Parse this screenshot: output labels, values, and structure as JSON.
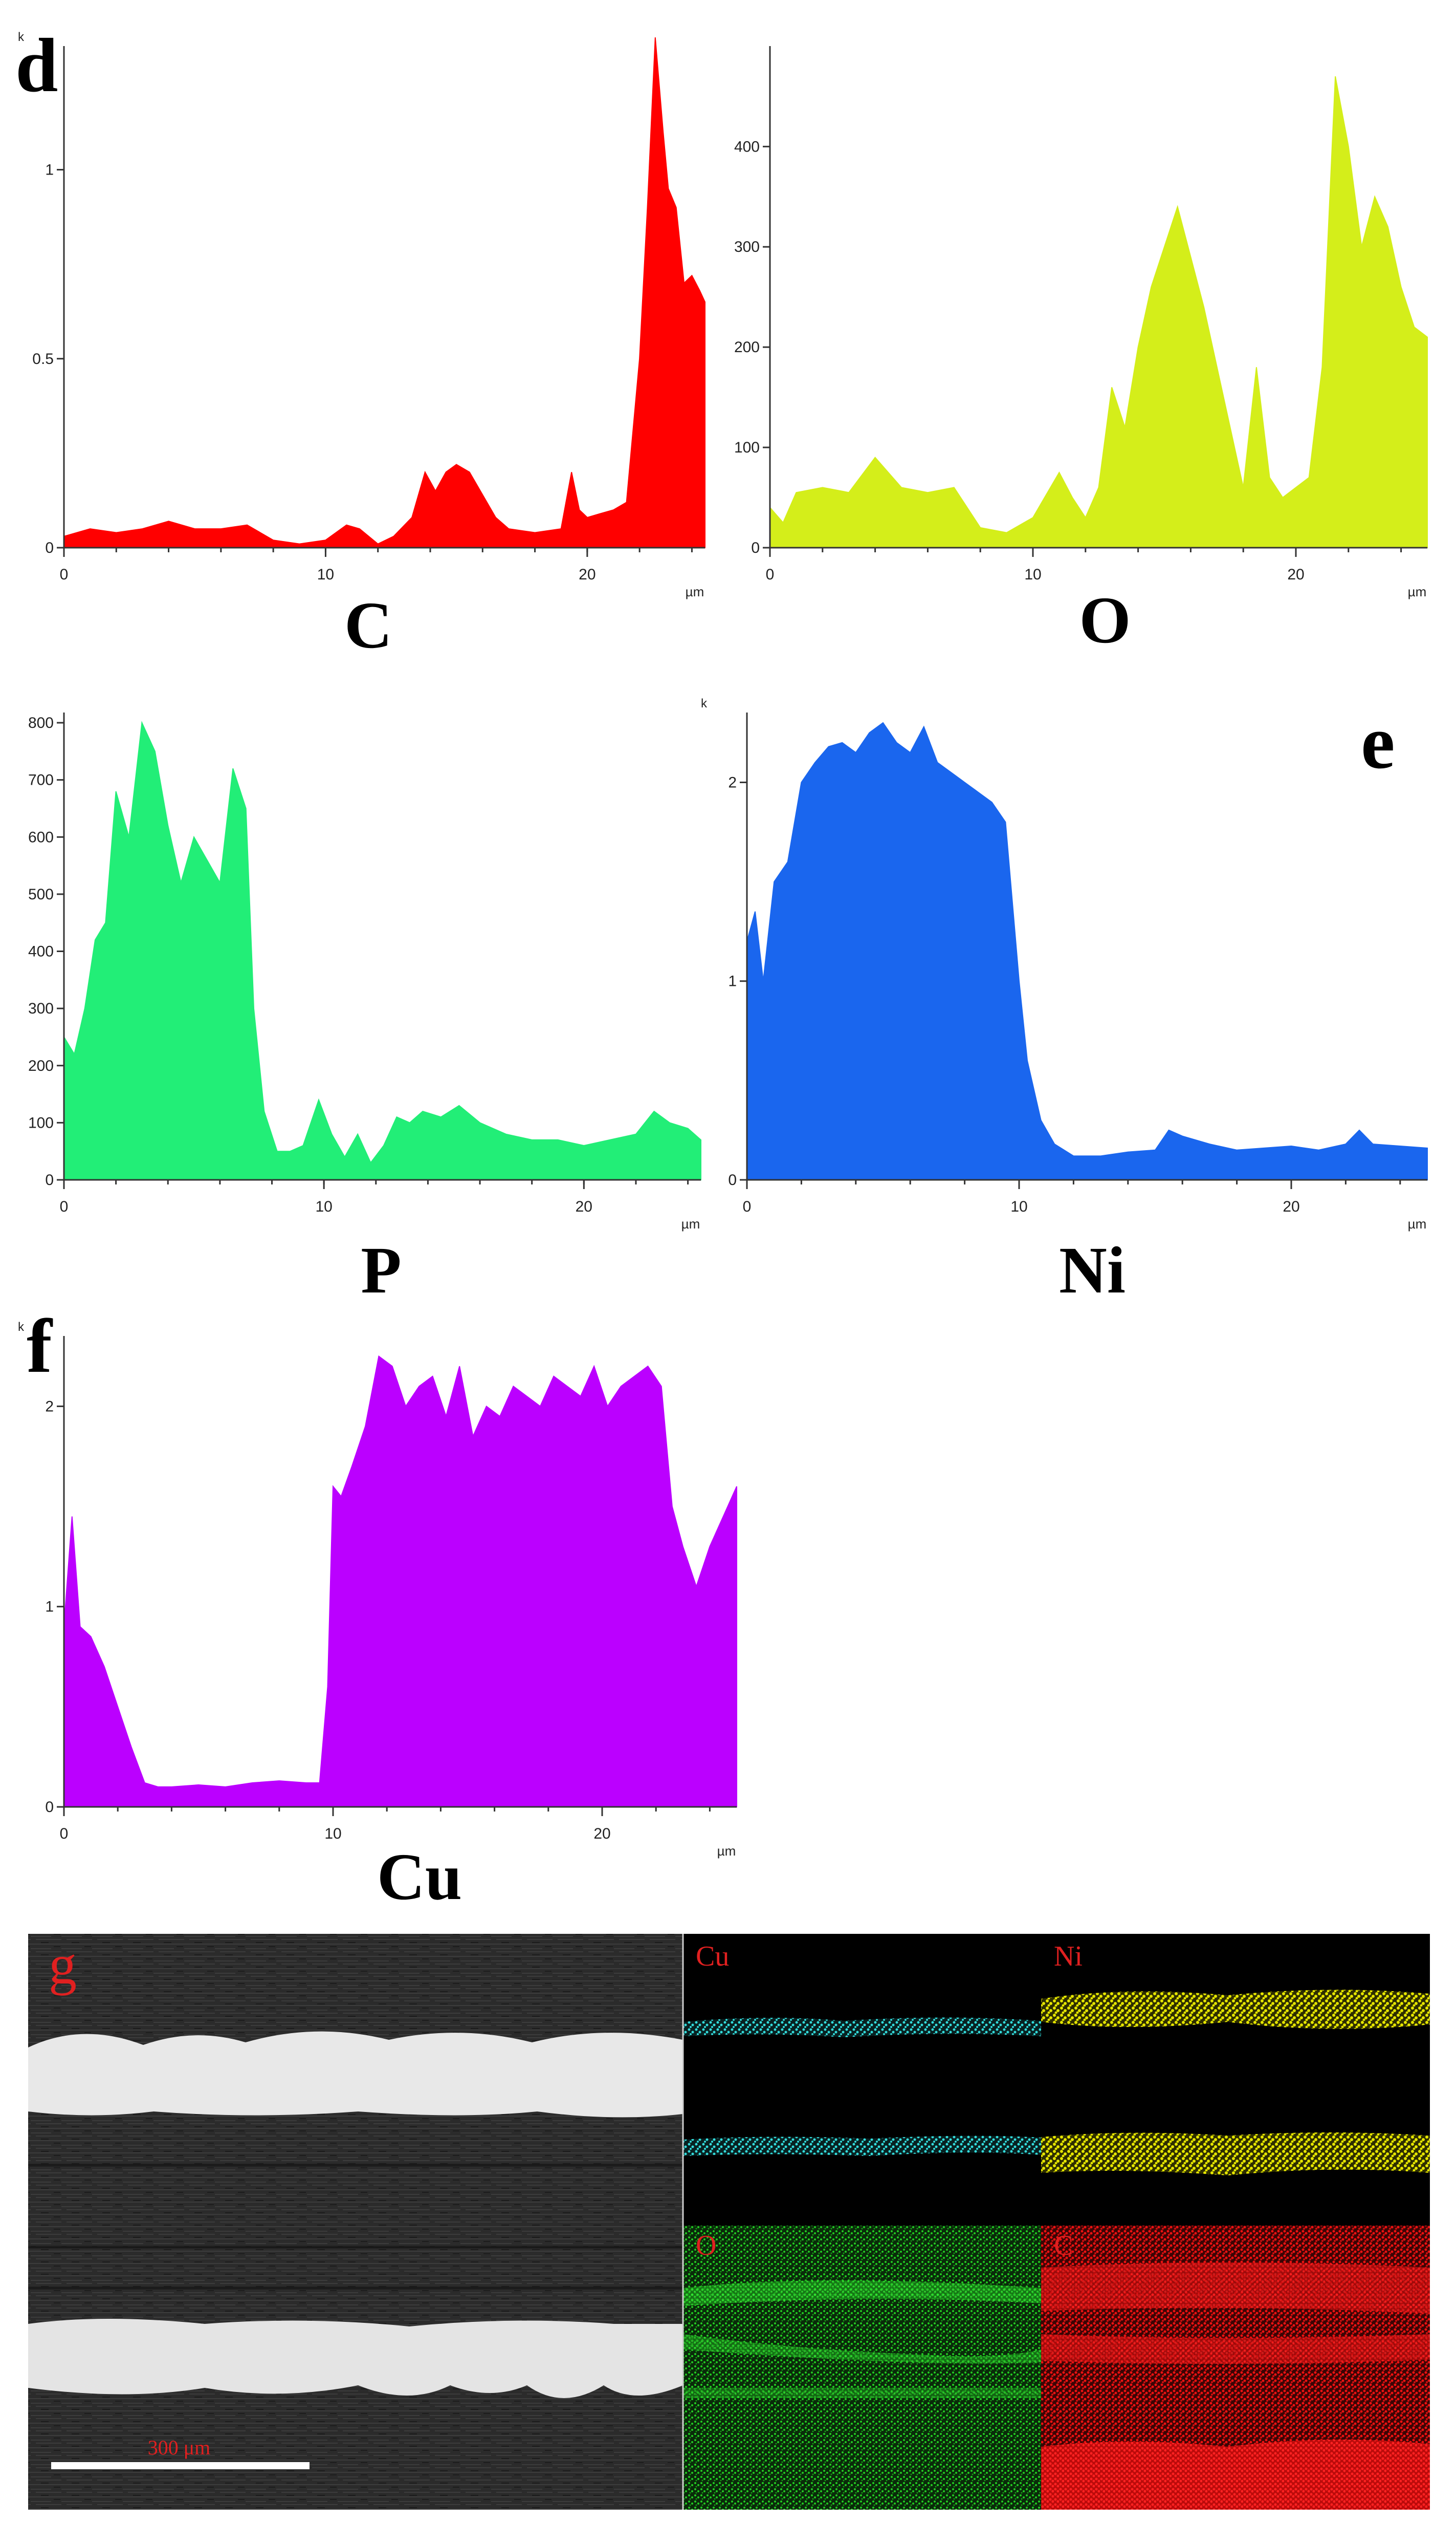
{
  "chart_data": [
    {
      "type": "area",
      "panel": "d",
      "element_label": "C",
      "color": "#ff0000",
      "xlabel": "µm",
      "ylabel_unit": "k",
      "xlim": [
        0,
        24.5
      ],
      "ylim": [
        0,
        1.3
      ],
      "xticks": [
        0,
        10,
        20
      ],
      "yticks": [
        0,
        0.5,
        1
      ],
      "ytick_labels": [
        "0",
        "0.5",
        "1"
      ],
      "x": [
        0,
        0.5,
        1,
        2,
        3,
        4,
        5,
        6,
        7,
        8,
        9,
        10,
        10.8,
        11.3,
        12,
        12.6,
        13.3,
        13.8,
        14.2,
        14.6,
        15,
        15.5,
        16,
        16.5,
        17,
        18,
        19,
        19.4,
        19.7,
        20,
        20.5,
        21,
        21.5,
        22,
        22.3,
        22.6,
        22.9,
        23.1,
        23.4,
        23.7,
        24,
        24.3,
        24.5
      ],
      "values": [
        0.03,
        0.04,
        0.05,
        0.04,
        0.05,
        0.07,
        0.05,
        0.05,
        0.06,
        0.02,
        0.01,
        0.02,
        0.06,
        0.05,
        0.01,
        0.03,
        0.08,
        0.2,
        0.15,
        0.2,
        0.22,
        0.2,
        0.14,
        0.08,
        0.05,
        0.04,
        0.05,
        0.2,
        0.1,
        0.08,
        0.09,
        0.1,
        0.12,
        0.5,
        0.9,
        1.35,
        1.1,
        0.95,
        0.9,
        0.7,
        0.72,
        0.68,
        0.65
      ]
    },
    {
      "type": "area",
      "panel": "d",
      "element_label": "O",
      "color": "#d4ee1a",
      "xlabel": "µm",
      "xlim": [
        0,
        25
      ],
      "ylim": [
        0,
        490
      ],
      "xticks": [
        0,
        10,
        20
      ],
      "yticks": [
        0,
        100,
        200,
        300,
        400
      ],
      "ytick_labels": [
        "0",
        "100",
        "200",
        "300",
        "400"
      ],
      "x": [
        0,
        0.5,
        1,
        2,
        3,
        4,
        5,
        6,
        7,
        8,
        9,
        10,
        11,
        11.5,
        12,
        12.5,
        13,
        13.5,
        14,
        14.5,
        15,
        15.5,
        16,
        16.5,
        17,
        17.5,
        18,
        18.5,
        19,
        19.5,
        20,
        20.5,
        21,
        21.5,
        22,
        22.5,
        23,
        23.5,
        24,
        24.5,
        25
      ],
      "values": [
        40,
        25,
        55,
        60,
        55,
        90,
        60,
        55,
        60,
        20,
        15,
        30,
        75,
        50,
        30,
        60,
        160,
        120,
        200,
        260,
        300,
        340,
        290,
        240,
        180,
        120,
        60,
        180,
        70,
        50,
        60,
        70,
        180,
        470,
        400,
        300,
        350,
        320,
        260,
        220,
        210
      ]
    },
    {
      "type": "area",
      "panel": "e",
      "element_label": "P",
      "color": "#22ee77",
      "xlabel": "µm",
      "xlim": [
        0,
        24.5
      ],
      "ylim": [
        0,
        800
      ],
      "xticks": [
        0,
        10,
        20
      ],
      "yticks": [
        0,
        100,
        200,
        300,
        400,
        500,
        600,
        700,
        800
      ],
      "ytick_labels": [
        "0",
        "100",
        "200",
        "300",
        "400",
        "500",
        "600",
        "700",
        "800"
      ],
      "x": [
        0,
        0.4,
        0.8,
        1.2,
        1.6,
        2,
        2.5,
        3,
        3.5,
        4,
        4.5,
        5,
        5.5,
        6,
        6.5,
        7,
        7.3,
        7.7,
        8.2,
        8.7,
        9.2,
        9.8,
        10.3,
        10.8,
        11.3,
        11.8,
        12.3,
        12.8,
        13.3,
        13.8,
        14.5,
        15.2,
        16,
        17,
        18,
        19,
        20,
        21,
        22,
        22.7,
        23.3,
        24,
        24.5
      ],
      "values": [
        250,
        220,
        300,
        420,
        450,
        680,
        600,
        800,
        750,
        620,
        520,
        600,
        560,
        520,
        720,
        650,
        300,
        120,
        50,
        50,
        60,
        140,
        80,
        40,
        80,
        30,
        60,
        110,
        100,
        120,
        110,
        130,
        100,
        80,
        70,
        70,
        60,
        70,
        80,
        120,
        100,
        90,
        70
      ]
    },
    {
      "type": "area",
      "panel": "e",
      "element_label": "Ni",
      "color": "#1a66ee",
      "xlabel": "µm",
      "ylabel_unit": "k",
      "xlim": [
        0,
        25
      ],
      "ylim": [
        0,
        2.3
      ],
      "xticks": [
        0,
        10,
        20
      ],
      "yticks": [
        0,
        1,
        2
      ],
      "ytick_labels": [
        "0",
        "1",
        "2"
      ],
      "x": [
        0,
        0.3,
        0.6,
        1,
        1.5,
        2,
        2.5,
        3,
        3.5,
        4,
        4.5,
        5,
        5.5,
        6,
        6.5,
        7,
        7.5,
        8,
        8.5,
        9,
        9.5,
        10,
        10.3,
        10.8,
        11.3,
        12,
        13,
        14,
        15,
        15.5,
        16,
        17,
        18,
        19,
        20,
        21,
        22,
        22.5,
        23,
        24,
        25
      ],
      "values": [
        1.2,
        1.35,
        1.0,
        1.5,
        1.6,
        2.0,
        2.1,
        2.18,
        2.2,
        2.15,
        2.25,
        2.3,
        2.2,
        2.15,
        2.28,
        2.1,
        2.05,
        2.0,
        1.95,
        1.9,
        1.8,
        1.0,
        0.6,
        0.3,
        0.18,
        0.12,
        0.12,
        0.14,
        0.15,
        0.25,
        0.22,
        0.18,
        0.15,
        0.16,
        0.17,
        0.15,
        0.18,
        0.25,
        0.18,
        0.17,
        0.16
      ]
    },
    {
      "type": "area",
      "panel": "f",
      "element_label": "Cu",
      "color": "#bb00ff",
      "xlabel": "µm",
      "ylabel_unit": "k",
      "xlim": [
        0,
        25
      ],
      "ylim": [
        0,
        2.3
      ],
      "xticks": [
        0,
        10,
        20
      ],
      "yticks": [
        0,
        1,
        2
      ],
      "ytick_labels": [
        "0",
        "1",
        "2"
      ],
      "x": [
        0,
        0.3,
        0.6,
        1,
        1.5,
        2,
        2.5,
        3,
        3.5,
        4,
        5,
        6,
        7,
        8,
        9,
        9.5,
        9.8,
        10,
        10.3,
        10.7,
        11.2,
        11.7,
        12.2,
        12.7,
        13.2,
        13.7,
        14.2,
        14.7,
        15.2,
        15.7,
        16.2,
        16.7,
        17.2,
        17.7,
        18.2,
        18.7,
        19.2,
        19.7,
        20.2,
        20.7,
        21.2,
        21.7,
        22.2,
        22.6,
        23,
        23.5,
        24,
        24.5,
        25
      ],
      "values": [
        0.9,
        1.45,
        0.9,
        0.85,
        0.7,
        0.5,
        0.3,
        0.12,
        0.1,
        0.1,
        0.11,
        0.1,
        0.12,
        0.13,
        0.12,
        0.12,
        0.6,
        1.6,
        1.55,
        1.7,
        1.9,
        2.25,
        2.2,
        2.0,
        2.1,
        2.15,
        1.95,
        2.2,
        1.85,
        2.0,
        1.95,
        2.1,
        2.05,
        2.0,
        2.15,
        2.1,
        2.05,
        2.2,
        2.0,
        2.1,
        2.15,
        2.2,
        2.1,
        1.5,
        1.3,
        1.1,
        1.3,
        1.45,
        1.6
      ]
    }
  ],
  "panels": {
    "d": "d",
    "e": "e",
    "f": "f",
    "g": "g"
  },
  "sem_panel": {
    "scale_bar_label": "300 μm",
    "maps": [
      {
        "label": "Cu",
        "color": "#33dddd"
      },
      {
        "label": "Ni",
        "color": "#e6e600"
      },
      {
        "label": "O",
        "color": "#22cc22"
      },
      {
        "label": "C",
        "color": "#ee1111"
      }
    ]
  }
}
